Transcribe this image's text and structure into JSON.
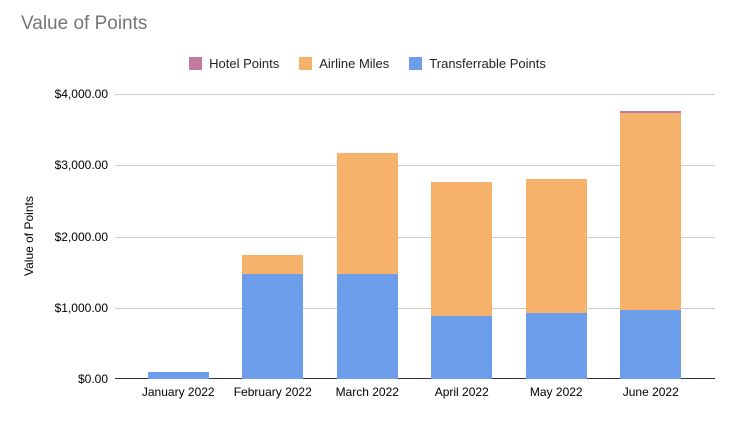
{
  "title": "Value of Points",
  "chart_data": {
    "type": "bar",
    "stacked": true,
    "title": "Value of Points",
    "xlabel": "",
    "ylabel": "Value of Points",
    "ylim": [
      0,
      4000
    ],
    "grid": true,
    "legend_position": "top",
    "categories": [
      "January 2022",
      "February 2022",
      "March 2022",
      "April 2022",
      "May 2022",
      "June 2022"
    ],
    "series": [
      {
        "name": "Hotel Points",
        "color": "#c27ba0",
        "values": [
          0,
          0,
          0,
          0,
          0,
          30
        ]
      },
      {
        "name": "Airline Miles",
        "color": "#f6b26b",
        "values": [
          0,
          275,
          1690,
          1880,
          1885,
          2760
        ]
      },
      {
        "name": "Transferrable Points",
        "color": "#6d9eeb",
        "values": [
          95,
          1470,
          1480,
          890,
          920,
          970
        ]
      }
    ],
    "yticks": [
      {
        "value": 0,
        "label": "$0.00"
      },
      {
        "value": 1000,
        "label": "$1,000.00"
      },
      {
        "value": 2000,
        "label": "$2,000.00"
      },
      {
        "value": 3000,
        "label": "$3,000.00"
      },
      {
        "value": 4000,
        "label": "$4,000.00"
      }
    ]
  },
  "colors": {
    "gridline": "#cccccc",
    "baseline": "#333333",
    "title_text": "#757575",
    "label_text": "#000000",
    "background": "#ffffff"
  }
}
